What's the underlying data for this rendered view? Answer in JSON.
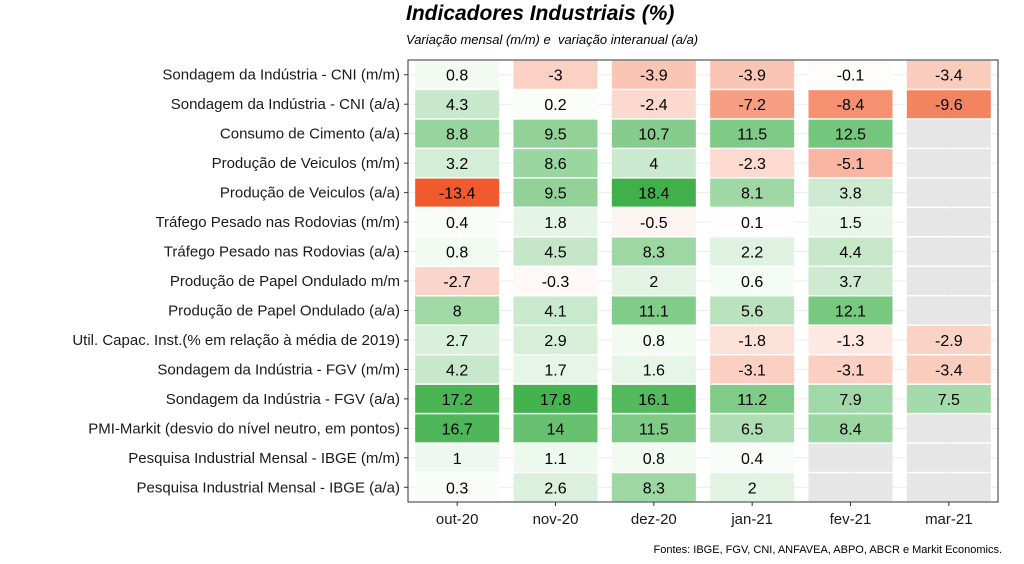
{
  "chart_data": {
    "type": "heatmap",
    "title": "Indicadores Industriais (%)",
    "subtitle": "Variação mensal (m/m) e  variação interanual (a/a)",
    "source": "Fontes: IBGE, FGV, CNI, ANFAVEA, ABPO, ABCR e Markit Economics.",
    "columns": [
      "out-20",
      "nov-20",
      "dez-20",
      "jan-21",
      "fev-21",
      "mar-21"
    ],
    "rows": [
      {
        "label": "Sondagem da Indústria - CNI (m/m)",
        "values": [
          0.8,
          -3,
          -3.9,
          -3.9,
          -0.1,
          -3.4
        ]
      },
      {
        "label": "Sondagem da Indústria - CNI (a/a)",
        "values": [
          4.3,
          0.2,
          -2.4,
          -7.2,
          -8.4,
          -9.6
        ]
      },
      {
        "label": "Consumo de Cimento (a/a)",
        "values": [
          8.8,
          9.5,
          10.7,
          11.5,
          12.5,
          null
        ]
      },
      {
        "label": "Produção de Veiculos (m/m)",
        "values": [
          3.2,
          8.6,
          4,
          -2.3,
          -5.1,
          null
        ]
      },
      {
        "label": "Produção de Veiculos (a/a)",
        "values": [
          -13.4,
          9.5,
          18.4,
          8.1,
          3.8,
          null
        ]
      },
      {
        "label": "Tráfego Pesado nas Rodovias (m/m)",
        "values": [
          0.4,
          1.8,
          -0.5,
          0.1,
          1.5,
          null
        ]
      },
      {
        "label": "Tráfego Pesado nas Rodovias (a/a)",
        "values": [
          0.8,
          4.5,
          8.3,
          2.2,
          4.4,
          null
        ]
      },
      {
        "label": "Produção de Papel Ondulado m/m",
        "values": [
          -2.7,
          -0.3,
          2,
          0.6,
          3.7,
          null
        ]
      },
      {
        "label": "Produção de Papel Ondulado (a/a)",
        "values": [
          8,
          4.1,
          11.1,
          5.6,
          12.1,
          null
        ]
      },
      {
        "label": "Util. Capac. Inst.(% em relação à média de 2019)",
        "values": [
          2.7,
          2.9,
          0.8,
          -1.8,
          -1.3,
          -2.9
        ]
      },
      {
        "label": "Sondagem da Indústria - FGV (m/m)",
        "values": [
          4.2,
          1.7,
          1.6,
          -3.1,
          -3.1,
          -3.4
        ]
      },
      {
        "label": "Sondagem da Indústria - FGV (a/a)",
        "values": [
          17.2,
          17.8,
          16.1,
          11.2,
          7.9,
          7.5
        ]
      },
      {
        "label": "PMI-Markit (desvio do nível neutro, em pontos)",
        "values": [
          16.7,
          14,
          11.5,
          6.5,
          8.4,
          null
        ]
      },
      {
        "label": "Pesquisa Industrial Mensal - IBGE (m/m)",
        "values": [
          1,
          1.1,
          0.8,
          0.4,
          null,
          null
        ]
      },
      {
        "label": "Pesquisa Industrial Mensal - IBGE (a/a)",
        "values": [
          0.3,
          2.6,
          8.3,
          2,
          null,
          null
        ]
      }
    ],
    "colors": {
      "negative_strong": "#f05a2c",
      "positive_strong": "#3fb04a",
      "neutral": "#ffffff",
      "missing": "#e6e6e6"
    }
  }
}
